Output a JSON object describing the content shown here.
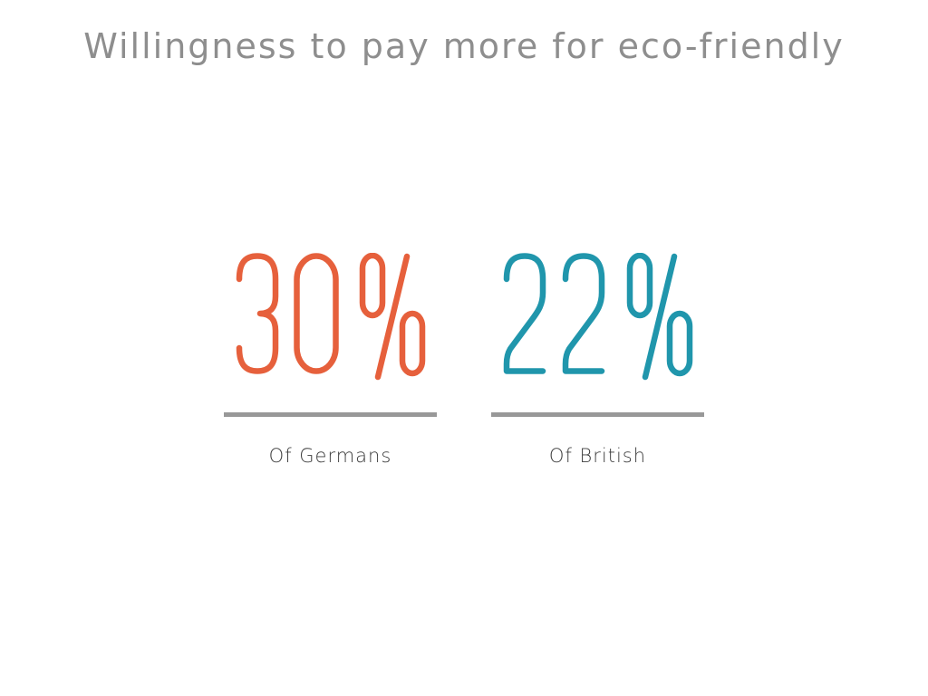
{
  "title": "Willingness to pay more for eco-friendly",
  "colors": {
    "title_gray": "#8E8E8E",
    "divider_gray": "#989898",
    "label_gray": "#3C3C3C",
    "orange": "#E6603C",
    "teal": "#2096AC"
  },
  "stats": [
    {
      "value": "30 %",
      "number": 30,
      "unit": "%",
      "label": "Of Germans",
      "color": "#E6603C"
    },
    {
      "value": "22 %",
      "number": 22,
      "unit": "%",
      "label": "Of British",
      "color": "#2096AC"
    }
  ],
  "chart_data": {
    "type": "table",
    "title": "Willingness to pay more for eco-friendly",
    "categories": [
      "Of Germans",
      "Of British"
    ],
    "values": [
      30,
      22
    ],
    "unit": "%",
    "series_colors": [
      "#E6603C",
      "#2096AC"
    ],
    "legend_position": "none",
    "grid": false
  }
}
